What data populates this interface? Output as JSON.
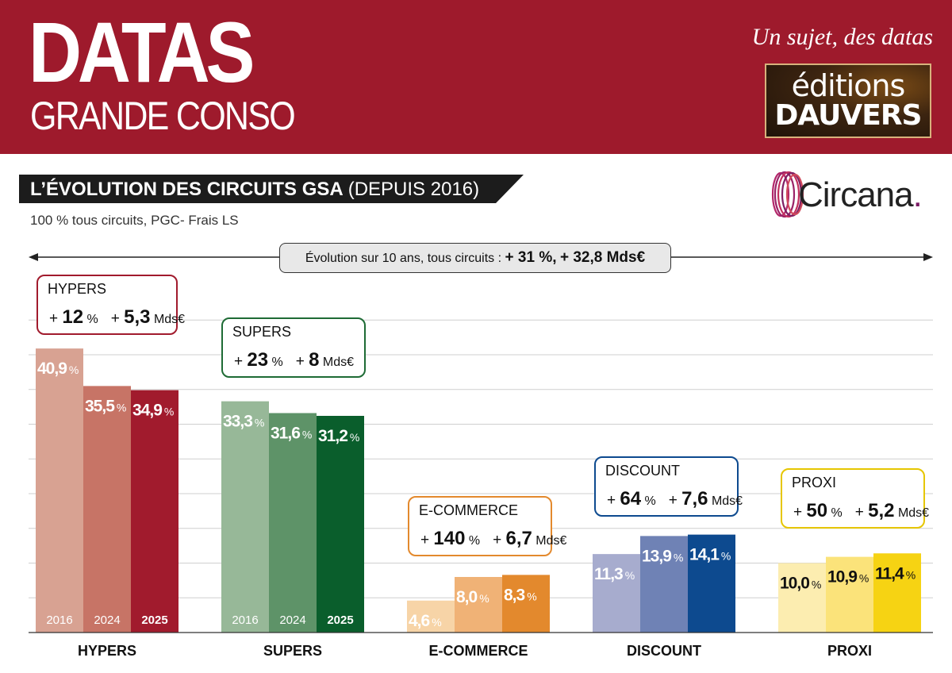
{
  "header": {
    "title": "DATAS",
    "subtitle": "GRANDE CONSO",
    "tagline": "Un sujet, des datas",
    "publisher_line1": "éditions",
    "publisher_line2": "DAUVERS"
  },
  "section": {
    "title_bold": "L’ÉVOLUTION DES CIRCUITS GSA",
    "title_light": "(DEPUIS 2016)",
    "scope_note": "100 % tous circuits, PGC- Frais LS",
    "source_logo": "Circana",
    "source_logo_dot": "."
  },
  "overall": {
    "label": "Évolution sur 10 ans, tous circuits :",
    "pct": "+ 31 %,",
    "amount": "+ 32,8 Mds€"
  },
  "chart_data": {
    "type": "bar",
    "categories": [
      "HYPERS",
      "SUPERS",
      "E-COMMERCE",
      "DISCOUNT",
      "PROXI"
    ],
    "years": [
      "2016",
      "2024",
      "2025"
    ],
    "unit": "%",
    "ylim": [
      0,
      45
    ],
    "grid": true,
    "groups": [
      {
        "category": "HYPERS",
        "values": [
          40.9,
          35.5,
          34.9
        ],
        "value_labels": [
          "40,9",
          "35,5",
          "34,9"
        ],
        "colors": [
          "#d8a292",
          "#c77466",
          "#a11b2d"
        ],
        "label_colors": [
          "#ffffff",
          "#ffffff",
          "#ffffff"
        ],
        "show_year_labels": true,
        "callout": {
          "name": "HYPERS",
          "pct": "12",
          "amount": "5,3",
          "border": "#a11b2d"
        }
      },
      {
        "category": "SUPERS",
        "values": [
          33.3,
          31.6,
          31.2
        ],
        "value_labels": [
          "33,3",
          "31,6",
          "31,2"
        ],
        "colors": [
          "#97b898",
          "#5e9368",
          "#0a5e2c"
        ],
        "label_colors": [
          "#ffffff",
          "#ffffff",
          "#ffffff"
        ],
        "show_year_labels": true,
        "callout": {
          "name": "SUPERS",
          "pct": "23",
          "amount": "8",
          "border": "#1e6b35"
        }
      },
      {
        "category": "E-COMMERCE",
        "values": [
          4.6,
          8.0,
          8.3
        ],
        "value_labels": [
          "4,6",
          "8,0",
          "8,3"
        ],
        "colors": [
          "#f7d4a7",
          "#f0b276",
          "#e3892d"
        ],
        "label_colors": [
          "#ffffff",
          "#ffffff",
          "#ffffff"
        ],
        "show_year_labels": false,
        "callout": {
          "name": "E-COMMERCE",
          "pct": "140",
          "amount": "6,7",
          "border": "#e3892d"
        }
      },
      {
        "category": "DISCOUNT",
        "values": [
          11.3,
          13.9,
          14.1
        ],
        "value_labels": [
          "11,3",
          "13,9",
          "14,1"
        ],
        "colors": [
          "#a7acce",
          "#6f82b5",
          "#0d4a8f"
        ],
        "label_colors": [
          "#ffffff",
          "#ffffff",
          "#ffffff"
        ],
        "show_year_labels": false,
        "callout": {
          "name": "DISCOUNT",
          "pct": "64",
          "amount": "7,6",
          "border": "#0d4a8f"
        }
      },
      {
        "category": "PROXI",
        "values": [
          10.0,
          10.9,
          11.4
        ],
        "value_labels": [
          "10,0",
          "10,9",
          "11,4"
        ],
        "colors": [
          "#fcedb0",
          "#fbe37a",
          "#f6d313"
        ],
        "label_colors": [
          "#111111",
          "#111111",
          "#111111"
        ],
        "show_year_labels": false,
        "callout": {
          "name": "PROXI",
          "pct": "50",
          "amount": "5,2",
          "border": "#e6c600"
        }
      }
    ]
  }
}
